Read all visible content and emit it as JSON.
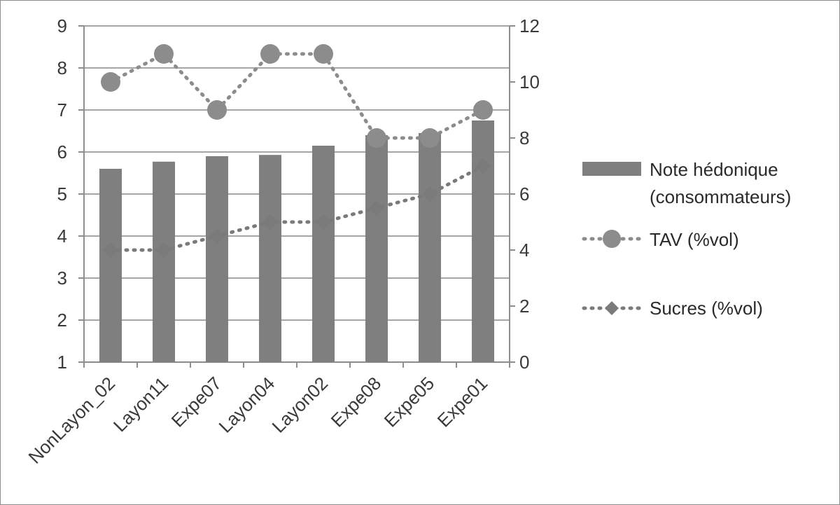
{
  "chart_data": {
    "type": "bar",
    "categories": [
      "NonLayon_02",
      "Layon11",
      "Expe07",
      "Layon04",
      "Layon02",
      "Expe08",
      "Expe05",
      "Expe01"
    ],
    "y_left": {
      "range": [
        1,
        9
      ],
      "ticks": [
        "1",
        "2",
        "3",
        "4",
        "5",
        "6",
        "7",
        "8",
        "9"
      ]
    },
    "y_right": {
      "range": [
        0,
        12
      ],
      "ticks": [
        "0",
        "2",
        "4",
        "6",
        "8",
        "10",
        "12"
      ]
    },
    "grid": true,
    "legend_position": "right",
    "series": [
      {
        "name_lines": [
          "Note hédonique",
          "(consommateurs)"
        ],
        "kind": "bar",
        "axis": "left",
        "color": "#7f7f7f",
        "values": [
          5.6,
          5.77,
          5.9,
          5.93,
          6.15,
          6.4,
          6.45,
          6.75
        ]
      },
      {
        "name": "TAV (%vol)",
        "kind": "line-dotted-circle",
        "axis": "right",
        "color": "#8c8c8c",
        "values": [
          10,
          11,
          9,
          11,
          11,
          8,
          8,
          9
        ]
      },
      {
        "name": "Sucres (%vol)",
        "kind": "line-dotted-diamond",
        "axis": "right",
        "color": "#7a7a7a",
        "values": [
          4,
          4,
          4.5,
          5,
          5,
          5.5,
          6,
          7
        ]
      }
    ]
  }
}
